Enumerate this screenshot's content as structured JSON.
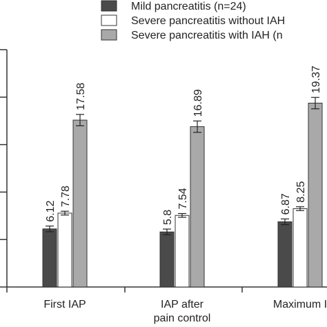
{
  "chart_data": {
    "type": "bar",
    "categories": [
      [
        "First IAP"
      ],
      [
        "IAP after",
        "pain control"
      ],
      [
        "Maximum I"
      ]
    ],
    "series": [
      {
        "name": "Mild pancreatitis (n=24)",
        "values": [
          6.12,
          5.8,
          6.87
        ],
        "errors": [
          0.3,
          0.3,
          0.3
        ],
        "color": "#4a4a4a",
        "labels": [
          "6.12",
          "5.8",
          "6.87"
        ]
      },
      {
        "name": "Severe pancreatitis without IAH",
        "values": [
          7.78,
          7.54,
          8.25
        ],
        "errors": [
          0.2,
          0.2,
          0.2
        ],
        "color": "#ffffff",
        "labels": [
          "7.78",
          "7.54",
          "8.25"
        ]
      },
      {
        "name": "Severe pancreatitis with IAH (n",
        "values": [
          17.58,
          16.89,
          19.37
        ],
        "errors": [
          0.6,
          0.6,
          0.6
        ],
        "color": "#a9a9a9",
        "labels": [
          "17.58",
          "16.89",
          "19.37"
        ]
      }
    ],
    "ylim": [
      0,
      25
    ],
    "yticks": [
      0,
      5,
      10,
      15,
      20,
      25
    ],
    "ytick_labels_visible": false,
    "legend": "top-right",
    "grid": false
  }
}
